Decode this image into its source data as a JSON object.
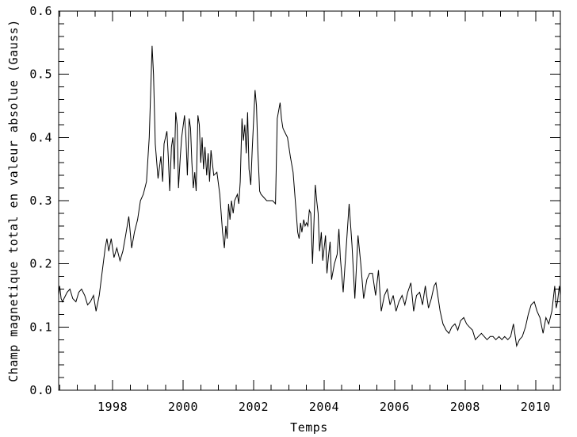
{
  "figure": {
    "background": "#ffffff",
    "frame_color": "#000000",
    "line_color": "#000000"
  },
  "chart_data": {
    "type": "line",
    "title": "",
    "xlabel": "Temps",
    "ylabel": "Champ magnetique total en valeur absolue (Gauss)",
    "xlim": [
      1996.47,
      2010.7
    ],
    "ylim": [
      0.0,
      0.6
    ],
    "x_ticks": [
      1998,
      2000,
      2002,
      2004,
      2006,
      2008,
      2010
    ],
    "x_tick_labels": [
      "1998",
      "2000",
      "2002",
      "2004",
      "2006",
      "2008",
      "2010"
    ],
    "x_minor_step": 0.5,
    "y_ticks": [
      0.0,
      0.1,
      0.2,
      0.3,
      0.4,
      0.5,
      0.6
    ],
    "y_tick_labels": [
      "0.0",
      "0.1",
      "0.2",
      "0.3",
      "0.4",
      "0.5",
      "0.6"
    ],
    "y_minor_step": 0.02,
    "grid": false,
    "legend_position": "none",
    "series": [
      {
        "name": "champ-magnetique-total",
        "color": "#000000",
        "x": [
          1996.47,
          1996.5,
          1996.54,
          1996.58,
          1996.62,
          1996.71,
          1996.79,
          1996.87,
          1996.96,
          1997.04,
          1997.12,
          1997.21,
          1997.29,
          1997.37,
          1997.46,
          1997.53,
          1997.62,
          1997.71,
          1997.79,
          1997.84,
          1997.89,
          1997.96,
          1998.04,
          1998.12,
          1998.21,
          1998.29,
          1998.37,
          1998.46,
          1998.54,
          1998.62,
          1998.71,
          1998.79,
          1998.87,
          1998.96,
          1999.04,
          1999.12,
          1999.16,
          1999.21,
          1999.29,
          1999.37,
          1999.42,
          1999.46,
          1999.54,
          1999.58,
          1999.62,
          1999.67,
          1999.71,
          1999.75,
          1999.79,
          1999.83,
          1999.87,
          1999.92,
          1999.96,
          2000.04,
          2000.08,
          2000.12,
          2000.17,
          2000.21,
          2000.25,
          2000.29,
          2000.33,
          2000.37,
          2000.42,
          2000.46,
          2000.5,
          2000.54,
          2000.58,
          2000.62,
          2000.67,
          2000.71,
          2000.75,
          2000.79,
          2000.83,
          2000.87,
          2000.96,
          2001.04,
          2001.12,
          2001.17,
          2001.21,
          2001.25,
          2001.29,
          2001.33,
          2001.37,
          2001.42,
          2001.46,
          2001.54,
          2001.58,
          2001.62,
          2001.67,
          2001.71,
          2001.75,
          2001.79,
          2001.83,
          2001.87,
          2001.92,
          2001.96,
          2002.04,
          2002.08,
          2002.12,
          2002.17,
          2002.21,
          2002.29,
          2002.37,
          2002.46,
          2002.54,
          2002.62,
          2002.67,
          2002.75,
          2002.79,
          2002.83,
          2002.87,
          2002.96,
          2003.04,
          2003.12,
          2003.21,
          2003.25,
          2003.29,
          2003.33,
          2003.37,
          2003.42,
          2003.46,
          2003.5,
          2003.54,
          2003.58,
          2003.62,
          2003.67,
          2003.75,
          2003.79,
          2003.83,
          2003.87,
          2003.92,
          2003.96,
          2004.04,
          2004.08,
          2004.12,
          2004.17,
          2004.21,
          2004.29,
          2004.37,
          2004.42,
          2004.46,
          2004.54,
          2004.62,
          2004.71,
          2004.79,
          2004.87,
          2004.96,
          2005.04,
          2005.12,
          2005.21,
          2005.29,
          2005.37,
          2005.46,
          2005.54,
          2005.62,
          2005.71,
          2005.79,
          2005.87,
          2005.96,
          2006.04,
          2006.12,
          2006.21,
          2006.29,
          2006.37,
          2006.46,
          2006.54,
          2006.62,
          2006.71,
          2006.79,
          2006.87,
          2006.96,
          2007.04,
          2007.12,
          2007.17,
          2007.29,
          2007.37,
          2007.46,
          2007.54,
          2007.62,
          2007.71,
          2007.79,
          2007.87,
          2007.96,
          2008.04,
          2008.12,
          2008.21,
          2008.29,
          2008.37,
          2008.46,
          2008.54,
          2008.62,
          2008.71,
          2008.79,
          2008.87,
          2008.96,
          2009.04,
          2009.12,
          2009.21,
          2009.29,
          2009.37,
          2009.46,
          2009.54,
          2009.62,
          2009.71,
          2009.79,
          2009.87,
          2009.96,
          2010.04,
          2010.12,
          2010.21,
          2010.29,
          2010.37,
          2010.46,
          2010.54,
          2010.58,
          2010.62,
          2010.67,
          2010.7
        ],
        "y": [
          0.15,
          0.165,
          0.145,
          0.14,
          0.145,
          0.155,
          0.16,
          0.145,
          0.14,
          0.155,
          0.16,
          0.15,
          0.135,
          0.14,
          0.15,
          0.125,
          0.15,
          0.19,
          0.225,
          0.24,
          0.22,
          0.24,
          0.21,
          0.225,
          0.205,
          0.22,
          0.245,
          0.275,
          0.225,
          0.25,
          0.27,
          0.3,
          0.31,
          0.33,
          0.4,
          0.545,
          0.5,
          0.39,
          0.335,
          0.37,
          0.33,
          0.39,
          0.41,
          0.37,
          0.315,
          0.385,
          0.4,
          0.35,
          0.44,
          0.42,
          0.32,
          0.37,
          0.4,
          0.435,
          0.4,
          0.34,
          0.43,
          0.415,
          0.36,
          0.32,
          0.345,
          0.315,
          0.435,
          0.42,
          0.36,
          0.4,
          0.35,
          0.385,
          0.34,
          0.375,
          0.33,
          0.38,
          0.36,
          0.34,
          0.345,
          0.31,
          0.25,
          0.225,
          0.26,
          0.24,
          0.295,
          0.27,
          0.3,
          0.28,
          0.3,
          0.31,
          0.295,
          0.33,
          0.43,
          0.395,
          0.42,
          0.375,
          0.44,
          0.35,
          0.325,
          0.38,
          0.475,
          0.45,
          0.38,
          0.315,
          0.31,
          0.305,
          0.3,
          0.3,
          0.3,
          0.295,
          0.43,
          0.455,
          0.43,
          0.415,
          0.41,
          0.4,
          0.37,
          0.345,
          0.28,
          0.25,
          0.24,
          0.265,
          0.25,
          0.27,
          0.26,
          0.265,
          0.26,
          0.285,
          0.28,
          0.2,
          0.325,
          0.3,
          0.28,
          0.22,
          0.25,
          0.205,
          0.245,
          0.185,
          0.21,
          0.235,
          0.175,
          0.2,
          0.215,
          0.255,
          0.21,
          0.155,
          0.22,
          0.295,
          0.23,
          0.145,
          0.245,
          0.2,
          0.145,
          0.175,
          0.185,
          0.185,
          0.15,
          0.19,
          0.125,
          0.15,
          0.16,
          0.135,
          0.15,
          0.125,
          0.14,
          0.15,
          0.135,
          0.155,
          0.17,
          0.125,
          0.15,
          0.155,
          0.135,
          0.165,
          0.13,
          0.145,
          0.165,
          0.17,
          0.125,
          0.105,
          0.095,
          0.09,
          0.1,
          0.105,
          0.095,
          0.11,
          0.115,
          0.105,
          0.1,
          0.095,
          0.08,
          0.085,
          0.09,
          0.085,
          0.08,
          0.085,
          0.085,
          0.08,
          0.085,
          0.08,
          0.085,
          0.08,
          0.085,
          0.105,
          0.07,
          0.08,
          0.085,
          0.1,
          0.12,
          0.135,
          0.14,
          0.125,
          0.115,
          0.09,
          0.115,
          0.105,
          0.125,
          0.165,
          0.13,
          0.14,
          0.165,
          0.15
        ]
      }
    ]
  }
}
